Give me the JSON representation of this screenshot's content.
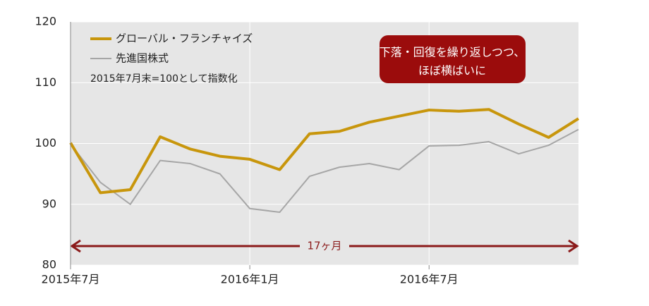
{
  "chart_data": {
    "type": "line",
    "categories": [
      "2015年7月",
      null,
      null,
      null,
      null,
      null,
      "2016年1月",
      null,
      null,
      null,
      null,
      null,
      "2016年7月",
      null,
      null,
      null,
      null,
      null
    ],
    "series": [
      {
        "name": "グローバル・フランチャイズ",
        "color": "#c8960c",
        "values": [
          100.1,
          91.9,
          92.4,
          101.1,
          99.1,
          97.9,
          97.4,
          95.7,
          101.6,
          102.0,
          103.5,
          104.5,
          105.5,
          105.3,
          105.6,
          103.2,
          101.0,
          104.1
        ]
      },
      {
        "name": "先進国株式",
        "color": "#a6a6a6",
        "values": [
          99.9,
          93.6,
          90.0,
          97.2,
          96.7,
          95.0,
          89.3,
          88.7,
          94.6,
          96.1,
          96.7,
          95.7,
          99.6,
          99.7,
          100.3,
          98.3,
          99.7,
          102.3
        ]
      }
    ],
    "ylim": [
      80,
      120
    ],
    "yticks": [
      80,
      90,
      100,
      110,
      120
    ],
    "grid": true,
    "note": "2015年7月末=100として指数化",
    "annotation": [
      "下落・回復を繰り返しつつ、",
      "ほぼ横ばいに"
    ],
    "span_label": "17ヶ月"
  }
}
